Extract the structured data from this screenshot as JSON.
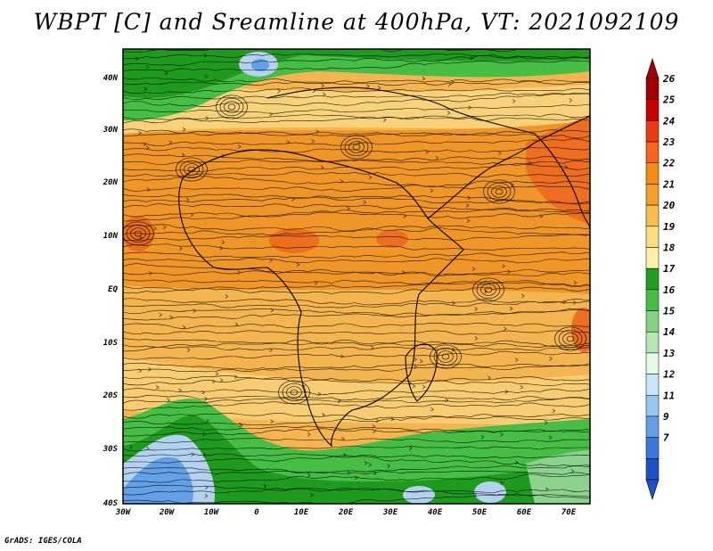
{
  "title": "WBPT [C] and Sreamline at 400hPa, VT: 2021092109",
  "footer": "GrADS: IGES/COLA",
  "lat_labels": [
    "40N",
    "30N",
    "20N",
    "10N",
    "EQ",
    "10S",
    "20S",
    "30S",
    "40S"
  ],
  "lon_labels": [
    "30W",
    "20W",
    "10W",
    "0",
    "10E",
    "20E",
    "30E",
    "40E",
    "50E",
    "60E",
    "70E"
  ],
  "colorbar": {
    "labels": [
      "26",
      "25",
      "24",
      "23",
      "22",
      "21",
      "20",
      "19",
      "18",
      "17",
      "16",
      "15",
      "14",
      "13",
      "12",
      "11",
      "9",
      "7"
    ],
    "colors": [
      "#a00000",
      "#c80000",
      "#e83c14",
      "#f4641e",
      "#f48c14",
      "#f4a028",
      "#f4be50",
      "#fadc82",
      "#fff0aa",
      "#1ea01e",
      "#46be46",
      "#82d282",
      "#b4e6b4",
      "#e6fae6",
      "#c8e6fa",
      "#96c8f0",
      "#64a0e6",
      "#3c78d8",
      "#1e50c8"
    ],
    "arrow_top": "#a00000",
    "arrow_bottom": "#1e50c8"
  },
  "map_palette": {
    "green_dark": "#1e9a1e",
    "green": "#46be46",
    "green_light": "#8cd28c",
    "blue": "#64a0e6",
    "blue_light": "#b4d2f0",
    "yellow": "#f8d27a",
    "orange_light": "#f4b450",
    "orange": "#f09628",
    "red_orange": "#ec6e1e"
  }
}
